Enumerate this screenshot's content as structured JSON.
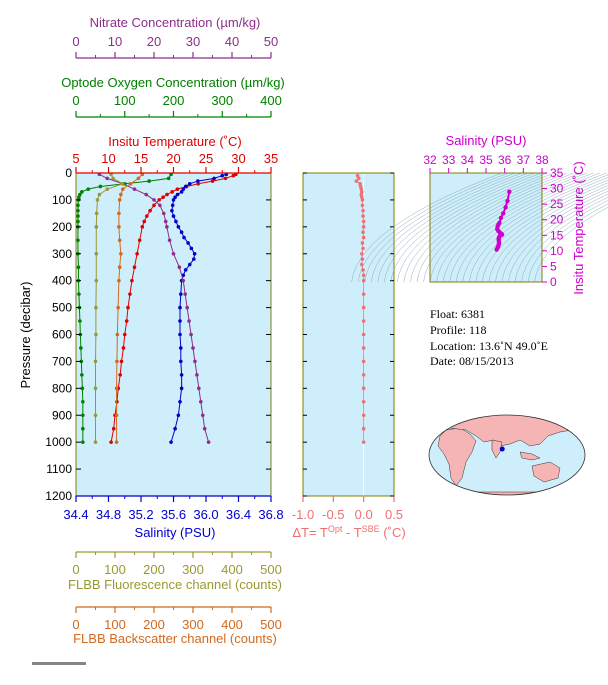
{
  "colors": {
    "nitrate": "#8b2f8b",
    "oxygen": "#008000",
    "temperature": "#e00000",
    "salinity": "#0000cc",
    "fluorescence": "#999933",
    "backscatter": "#d2691e",
    "delta": "#f07070",
    "magenta": "#cc00cc",
    "plot_bg": "#cdeefa",
    "frame": "#808000",
    "land": "#f5b5b5"
  },
  "chart_data": [
    {
      "type": "line",
      "title": "",
      "ylabel": "Pressure (decibar)",
      "ylim": [
        1200,
        0
      ],
      "yticks": [
        "0",
        "100",
        "200",
        "300",
        "400",
        "500",
        "600",
        "700",
        "800",
        "900",
        "1000",
        "1100",
        "1200"
      ],
      "axes": {
        "nitrate": {
          "label": "Nitrate Concentration (µm/kg)",
          "range": [
            0,
            50
          ],
          "ticks": [
            "0",
            "10",
            "20",
            "30",
            "40",
            "50"
          ]
        },
        "oxygen": {
          "label": "Optode Oxygen Concentration (µm/kg)",
          "range": [
            0,
            400
          ],
          "ticks": [
            "0",
            "100",
            "200",
            "300",
            "400"
          ]
        },
        "temperature": {
          "label": "Insitu Temperature (˚C)",
          "range": [
            5,
            35
          ],
          "ticks": [
            "5",
            "10",
            "15",
            "20",
            "25",
            "30",
            "35"
          ]
        },
        "salinity": {
          "label": "Salinity (PSU)",
          "range": [
            34.4,
            36.8
          ],
          "ticks": [
            "34.4",
            "34.8",
            "35.2",
            "35.6",
            "36.0",
            "36.4",
            "36.8"
          ]
        },
        "fluorescence": {
          "label": "FLBB Fluorescence channel (counts)",
          "range": [
            0,
            500
          ],
          "ticks": [
            "0",
            "100",
            "200",
            "300",
            "400",
            "500"
          ]
        },
        "backscatter": {
          "label": "FLBB Backscatter channel (counts)",
          "range": [
            0,
            500
          ],
          "ticks": [
            "0",
            "100",
            "200",
            "300",
            "400",
            "500"
          ]
        }
      },
      "series": [
        {
          "key": "temperature",
          "pressure": [
            5,
            10,
            20,
            30,
            40,
            50,
            60,
            70,
            80,
            90,
            100,
            120,
            140,
            160,
            180,
            200,
            250,
            300,
            350,
            400,
            450,
            500,
            550,
            600,
            650,
            700,
            750,
            800,
            850,
            900,
            950,
            1000
          ],
          "values": [
            29.6,
            29.2,
            28.0,
            26.0,
            23.8,
            22.0,
            20.6,
            19.8,
            19.0,
            18.4,
            17.8,
            17.0,
            16.4,
            15.9,
            15.5,
            15.2,
            14.8,
            14.4,
            14.0,
            13.6,
            13.3,
            13.0,
            12.8,
            12.5,
            12.3,
            12.0,
            11.8,
            11.5,
            11.3,
            11.0,
            10.8,
            10.4
          ]
        },
        {
          "key": "salinity",
          "pressure": [
            5,
            10,
            20,
            30,
            40,
            50,
            60,
            70,
            80,
            90,
            100,
            120,
            140,
            160,
            180,
            200,
            220,
            240,
            260,
            280,
            300,
            320,
            340,
            360,
            380,
            400,
            450,
            500,
            550,
            600,
            650,
            700,
            750,
            800,
            850,
            900,
            950,
            1000
          ],
          "values": [
            36.25,
            36.2,
            36.1,
            35.9,
            35.8,
            35.75,
            35.72,
            35.7,
            35.65,
            35.62,
            35.6,
            35.59,
            35.58,
            35.6,
            35.63,
            35.66,
            35.7,
            35.73,
            35.78,
            35.82,
            35.86,
            35.85,
            35.8,
            35.75,
            35.72,
            35.7,
            35.69,
            35.68,
            35.68,
            35.68,
            35.69,
            35.69,
            35.7,
            35.7,
            35.68,
            35.66,
            35.62,
            35.57
          ]
        },
        {
          "key": "nitrate",
          "pressure": [
            5,
            20,
            40,
            60,
            80,
            100,
            120,
            150,
            180,
            200,
            250,
            300,
            350,
            400,
            450,
            500,
            550,
            600,
            650,
            700,
            750,
            800,
            850,
            900,
            950,
            1000
          ],
          "values": [
            6,
            8,
            12,
            15,
            18,
            20,
            21.5,
            22.5,
            23,
            23.3,
            24,
            25,
            26.5,
            27.5,
            28,
            28.5,
            29,
            29.5,
            30,
            30.5,
            31,
            31.5,
            32,
            32.5,
            33,
            34
          ]
        },
        {
          "key": "oxygen",
          "pressure": [
            5,
            20,
            30,
            40,
            50,
            60,
            70,
            80,
            90,
            100,
            120,
            140,
            160,
            180,
            200,
            250,
            300,
            350,
            400,
            450,
            500,
            550,
            600,
            650,
            700,
            750,
            800,
            850,
            900,
            950,
            1000
          ],
          "values": [
            195,
            190,
            150,
            100,
            50,
            25,
            12,
            8,
            6,
            5,
            4,
            4,
            4,
            4,
            4,
            4,
            4,
            5,
            5,
            6,
            7,
            8,
            9,
            10,
            11,
            12,
            13,
            14,
            14,
            14,
            14
          ]
        },
        {
          "key": "fluorescence",
          "pressure": [
            5,
            20,
            40,
            60,
            80,
            100,
            150,
            200,
            300,
            400,
            500,
            600,
            700,
            800,
            900,
            1000
          ],
          "values": [
            90,
            95,
            120,
            80,
            60,
            55,
            53,
            52,
            52,
            52,
            51,
            51,
            50,
            50,
            50,
            50
          ]
        },
        {
          "key": "backscatter",
          "pressure": [
            5,
            20,
            40,
            60,
            80,
            100,
            150,
            200,
            250,
            300,
            350,
            400,
            500,
            600,
            700,
            800,
            900,
            1000
          ],
          "values": [
            170,
            160,
            140,
            120,
            115,
            112,
            110,
            110,
            112,
            115,
            112,
            110,
            108,
            106,
            105,
            104,
            104,
            104
          ]
        }
      ]
    },
    {
      "type": "scatter",
      "title": "",
      "xlabel": "ΔT= T<sup>Opt</sup> - T<sup>SBE</sup> (˚C)",
      "xlabel_parts": [
        "ΔT= T",
        "Opt",
        " - T",
        "SBE",
        " (˚C)"
      ],
      "xlim": [
        -1.0,
        0.5
      ],
      "xticks": [
        "-1.0",
        "-0.5",
        "0.0",
        "0.5"
      ],
      "ylim": [
        1200,
        0
      ],
      "pressure": [
        10,
        20,
        30,
        40,
        50,
        60,
        70,
        80,
        90,
        100,
        120,
        140,
        160,
        180,
        200,
        220,
        240,
        260,
        280,
        300,
        320,
        340,
        360,
        380,
        400,
        450,
        500,
        550,
        600,
        650,
        700,
        750,
        800,
        850,
        900,
        950,
        1000
      ],
      "values": [
        -0.1,
        -0.08,
        -0.12,
        -0.06,
        -0.05,
        -0.04,
        -0.03,
        -0.04,
        -0.03,
        -0.02,
        -0.02,
        -0.01,
        -0.01,
        0.0,
        0.0,
        -0.01,
        0.0,
        -0.02,
        -0.01,
        -0.03,
        -0.02,
        -0.03,
        -0.01,
        0.0,
        0.0,
        0.0,
        0.0,
        0.0,
        0.0,
        0.0,
        0.0,
        0.0,
        0.0,
        0.0,
        0.0,
        0.0,
        0.0
      ]
    },
    {
      "type": "scatter",
      "title": "",
      "xlabel": "Salinity (PSU)",
      "ylabel": "Insitu Temperature (˚C)",
      "xlim": [
        32,
        38
      ],
      "ylim": [
        0,
        35
      ],
      "xticks": [
        "32",
        "33",
        "34",
        "35",
        "36",
        "37",
        "38"
      ],
      "yticks": [
        "0",
        "5",
        "10",
        "15",
        "20",
        "25",
        "30",
        "35"
      ],
      "salinity": [
        35.57,
        35.62,
        35.66,
        35.68,
        35.7,
        35.69,
        35.68,
        35.68,
        35.7,
        35.74,
        35.8,
        35.86,
        35.82,
        35.74,
        35.66,
        35.6,
        35.62,
        35.66,
        35.72,
        35.8,
        35.92,
        36.05,
        36.15,
        36.25
      ],
      "temperature": [
        10.4,
        11.0,
        11.5,
        12.0,
        12.5,
        13.0,
        13.6,
        14.0,
        14.4,
        14.8,
        15.0,
        15.2,
        15.5,
        15.9,
        16.4,
        17.0,
        17.8,
        18.4,
        19.0,
        20.6,
        22.0,
        24.0,
        26.0,
        29.0
      ]
    }
  ],
  "info": {
    "float": "Float:  6381",
    "profile": "Profile:  118",
    "location": "Location:  13.6˚N  49.0˚E",
    "date": "Date:  08/15/2013"
  },
  "map": {
    "float_lon": 49.0,
    "float_lat": 13.6
  }
}
